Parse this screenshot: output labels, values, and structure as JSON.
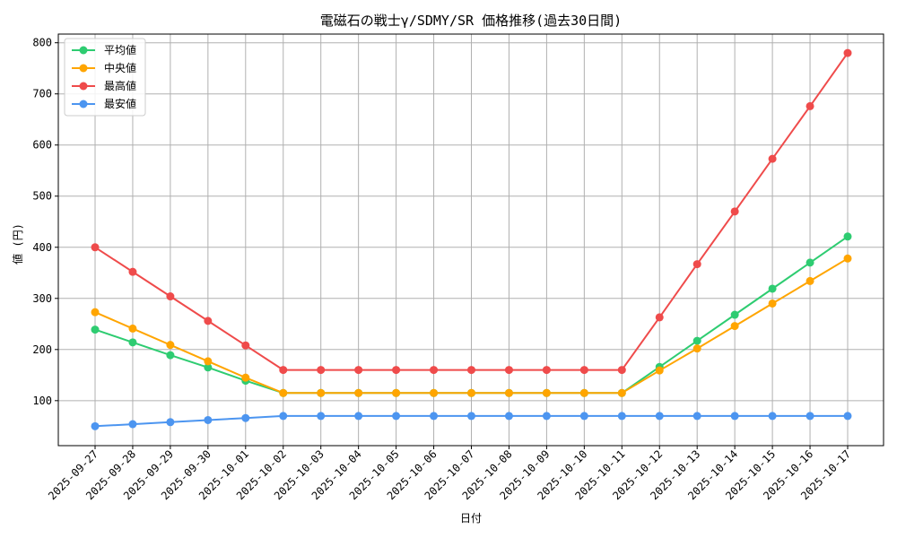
{
  "chart_data": {
    "type": "line",
    "title": "電磁石の戦士γ/SDMY/SR 価格推移(過去30日間)",
    "xlabel": "日付",
    "ylabel": "値 (円)",
    "ylim": [
      12,
      817
    ],
    "yticks": [
      100,
      200,
      300,
      400,
      500,
      600,
      700,
      800
    ],
    "grid": true,
    "legend_position": "top-left",
    "categories": [
      "2025-09-27",
      "2025-09-28",
      "2025-09-29",
      "2025-09-30",
      "2025-10-01",
      "2025-10-02",
      "2025-10-03",
      "2025-10-04",
      "2025-10-05",
      "2025-10-06",
      "2025-10-07",
      "2025-10-08",
      "2025-10-09",
      "2025-10-10",
      "2025-10-11",
      "2025-10-12",
      "2025-10-13",
      "2025-10-14",
      "2025-10-15",
      "2025-10-16",
      "2025-10-17"
    ],
    "series": [
      {
        "name": "平均値",
        "color": "#2ecc71",
        "values": [
          239,
          214,
          189,
          165,
          139,
          115,
          115,
          115,
          115,
          115,
          115,
          115,
          115,
          115,
          115,
          166,
          217,
          268,
          319,
          370,
          421
        ]
      },
      {
        "name": "中央値",
        "color": "#ffa500",
        "values": [
          273,
          241,
          209,
          177,
          145,
          115,
          115,
          115,
          115,
          115,
          115,
          115,
          115,
          115,
          115,
          159,
          202,
          246,
          290,
          334,
          378
        ]
      },
      {
        "name": "最高値",
        "color": "#ef4b4b",
        "values": [
          400,
          352,
          304,
          256,
          208,
          160,
          160,
          160,
          160,
          160,
          160,
          160,
          160,
          160,
          160,
          263,
          367,
          470,
          573,
          676,
          780
        ]
      },
      {
        "name": "最安値",
        "color": "#4c95f0",
        "values": [
          50,
          54,
          58,
          62,
          66,
          70,
          70,
          70,
          70,
          70,
          70,
          70,
          70,
          70,
          70,
          70,
          70,
          70,
          70,
          70,
          70
        ]
      }
    ]
  }
}
